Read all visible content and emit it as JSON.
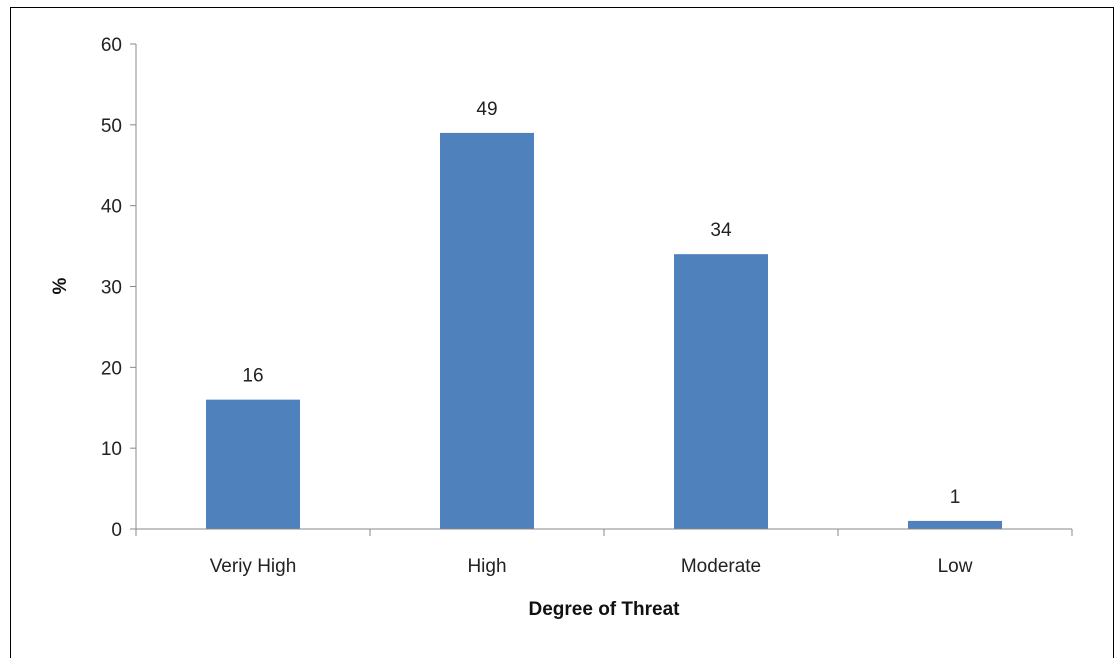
{
  "chart_data": {
    "type": "bar",
    "categories": [
      "Veriy High",
      "High",
      "Moderate",
      "Low"
    ],
    "values": [
      16,
      49,
      34,
      1
    ],
    "data_labels": [
      "16",
      "49",
      "34",
      "1"
    ],
    "xlabel": "Degree of Threat",
    "ylabel": "%",
    "ylim": [
      0,
      60
    ],
    "yticks": [
      0,
      10,
      20,
      30,
      40,
      50,
      60
    ],
    "grid": false,
    "legend": "none",
    "bar_color": "#4f81bd"
  }
}
